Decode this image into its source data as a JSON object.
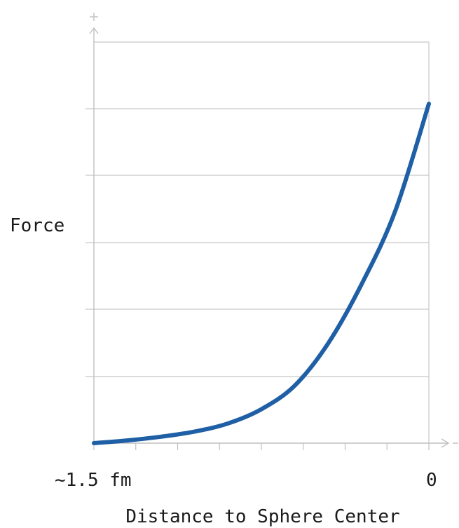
{
  "chart_data": {
    "type": "line",
    "title": "",
    "xlabel": "Distance to Sphere Center",
    "ylabel": "Force",
    "x_tick_labels": [
      "~1.5 fm",
      "0"
    ],
    "y_axis_symbol": "+",
    "x_axis_symbol": "-",
    "xlim": [
      -1.5,
      0
    ],
    "ylim": [
      0,
      1
    ],
    "grid": true,
    "legend": "none",
    "series": [
      {
        "x": [
          -1.5,
          -1.35,
          -1.2,
          -1.05,
          -0.9,
          -0.75,
          -0.6,
          -0.45,
          -0.3,
          -0.15,
          0
        ],
        "y": [
          0.0,
          0.008,
          0.019,
          0.034,
          0.058,
          0.1,
          0.17,
          0.295,
          0.47,
          0.685,
          1.0
        ],
        "color": "#1f5fa5"
      }
    ]
  }
}
